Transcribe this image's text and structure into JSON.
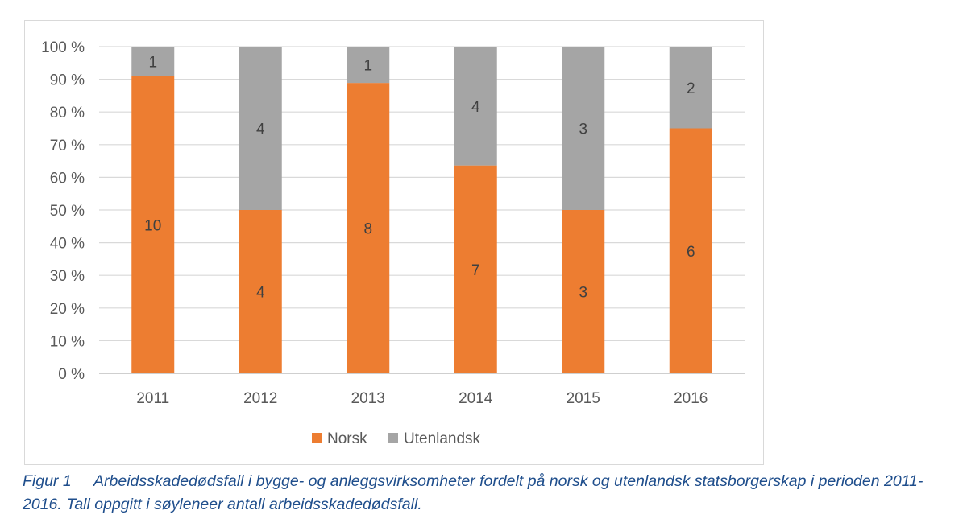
{
  "chart_data": {
    "type": "bar",
    "stacked": "percent",
    "categories": [
      "2011",
      "2012",
      "2013",
      "2014",
      "2015",
      "2016"
    ],
    "series": [
      {
        "name": "Norsk",
        "color": "#ed7d31",
        "values": [
          10,
          4,
          8,
          7,
          3,
          6
        ]
      },
      {
        "name": "Utenlandsk",
        "color": "#a5a5a5",
        "values": [
          1,
          4,
          1,
          4,
          3,
          2
        ]
      }
    ],
    "y_ticks": [
      "0 %",
      "10 %",
      "20 %",
      "30 %",
      "40 %",
      "50 %",
      "60 %",
      "70 %",
      "80 %",
      "90 %",
      "100 %"
    ],
    "ylim": [
      0,
      100
    ],
    "grid": true,
    "legend": "bottom"
  },
  "caption": {
    "figure_number": "Figur 1",
    "text": "Arbeidsskadedødsfall i bygge- og anleggsvirksomheter fordelt på norsk og utenlandsk statsborgerskap i perioden 2011-2016. Tall oppgitt i søyleneer antall arbeidsskadedødsfall."
  }
}
